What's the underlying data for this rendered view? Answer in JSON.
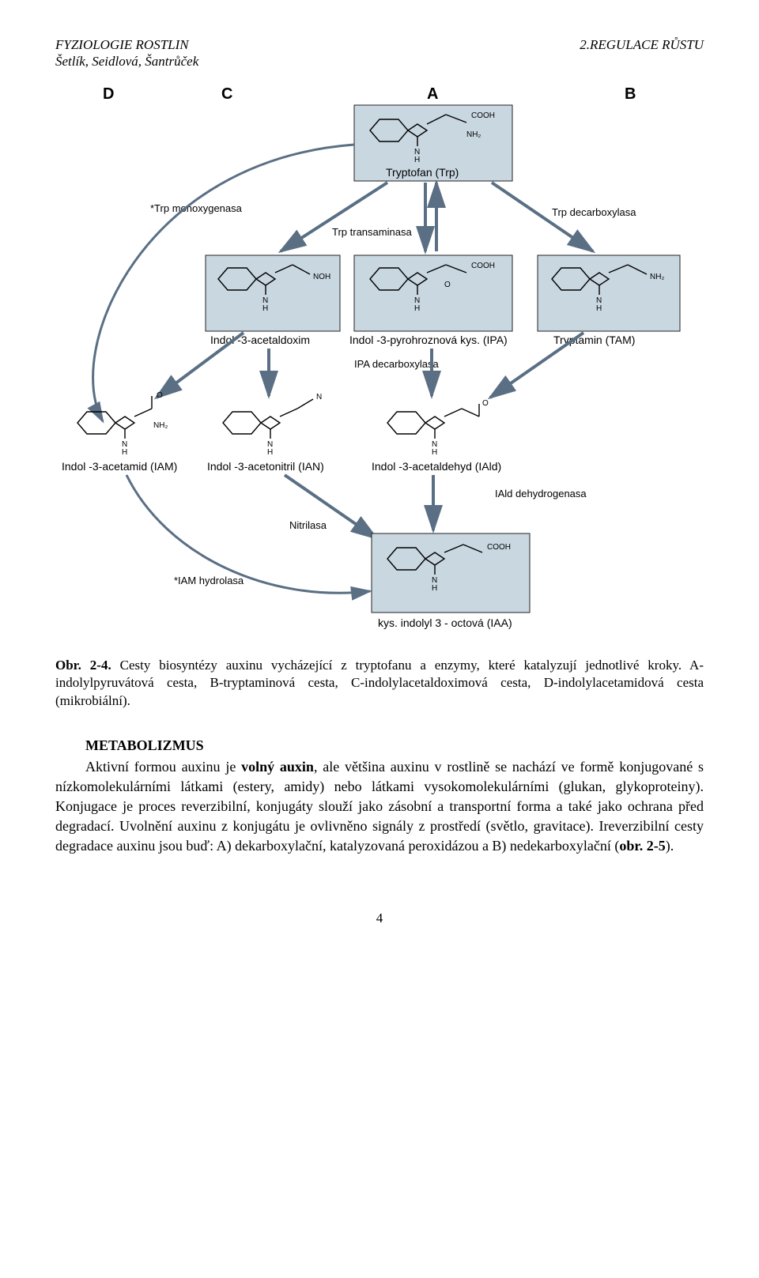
{
  "header": {
    "left_line1": "FYZIOLOGIE ROSTLIN",
    "left_line2": "Šetlík, Seidlová, Šantrůček",
    "right": "2.REGULACE RŮSTU"
  },
  "figure": {
    "type": "flowchart",
    "background_color": "#ffffff",
    "box_fill": "#c9d7e1",
    "arrow_color": "#5a6f84",
    "path_labels": {
      "D": "D",
      "C": "C",
      "A": "A",
      "B": "B"
    },
    "nodes": {
      "trp": {
        "label": "Tryptofan  (Trp)",
        "sub_right": "COOH",
        "sub_br": "NH₂"
      },
      "iaox": {
        "label": "Indol -3-acetaldoxim",
        "sub_right": "NOH"
      },
      "ipa": {
        "label": "Indol -3-pyrohroznová kys. (IPA)",
        "sub_right": "COOH",
        "sub_o": "O"
      },
      "tam": {
        "label": "Tryptamin (TAM)",
        "sub_right": "NH₂"
      },
      "iam": {
        "label": "Indol -3-acetamid (IAM)",
        "sub_right": "O",
        "sub_br": "NH₂"
      },
      "ian": {
        "label": "Indol -3-acetonitril (IAN)",
        "sub_right": "N"
      },
      "iald": {
        "label": "Indol -3-acetaldehyd (IAld)",
        "sub_right": "O"
      },
      "iaa": {
        "label": "kys. indolyl 3 - octová (IAA)",
        "sub_right": "COOH"
      }
    },
    "enzymes": {
      "trp_mono": "*Trp monoxygenasa",
      "trp_trans": "Trp transaminasa",
      "trp_decarb": "Trp decarboxylasa",
      "ipa_decarb": "IPA decarboxylasa",
      "iald_dehydro": "IAld dehydrogenasa",
      "nitrilasa": "Nitrilasa",
      "iam_hydrol": "*IAM hydrolasa"
    }
  },
  "caption": {
    "lead": "Obr. 2-4.",
    "rest": " Cesty biosyntézy auxinu vycházející z tryptofanu a enzymy, které katalyzují jednotlivé kroky. A- indolylpyruvátová cesta, B-tryptaminová cesta, C-indolylacetaldoximová cesta, D-indolylacetamidová cesta (mikrobiální)."
  },
  "section": {
    "title": "METABOLIZMUS",
    "body_html": "Aktivní formou auxinu je <b>volný auxin</b>, ale většina auxinu v rostlině se nachází ve formě konjugované s nízkomolekulárními látkami (estery, amidy) nebo látkami vysokomolekulárními (glukan, glykoproteiny). Konjugace je proces reverzibilní, konjugáty slouží jako zásobní a transportní forma a také jako ochrana před degradací. Uvolnění auxinu z konjugátu je ovlivněno signály z prostředí (světlo, gravitace). Ireverzibilní cesty degradace auxinu jsou buď: A) dekarboxylační, katalyzovaná peroxidázou a B) nedekarboxylační (<b>obr. 2-5</b>)."
  },
  "page_number": "4"
}
